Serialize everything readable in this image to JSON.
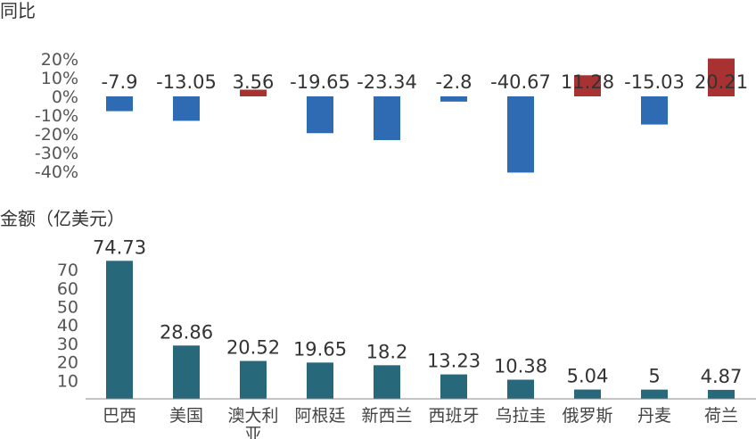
{
  "chart_data": [
    {
      "type": "bar",
      "title": "同比",
      "unit": "%",
      "ylim": [
        -40,
        20
      ],
      "yticks": [
        20,
        10,
        0,
        -10,
        -20,
        -30,
        -40
      ],
      "ytick_labels": [
        "20%",
        "10%",
        "0%",
        "-10%",
        "-20%",
        "-30%",
        "-40%"
      ],
      "categories": [
        "巴西",
        "美国",
        "澳大利亚",
        "阿根廷",
        "新西兰",
        "西班牙",
        "乌拉圭",
        "俄罗斯",
        "丹麦",
        "荷兰"
      ],
      "values": [
        -7.9,
        -13.05,
        3.56,
        -19.65,
        -23.34,
        -2.8,
        -40.67,
        11.28,
        -15.03,
        20.21
      ],
      "value_labels": [
        "-7.9",
        "-13.05",
        "3.56",
        "-19.65",
        "-23.34",
        "-2.8",
        "-40.67",
        "11.28",
        "-15.03",
        "20.21"
      ],
      "colors": {
        "positive": "#a83232",
        "negative": "#2f6bb3"
      }
    },
    {
      "type": "bar",
      "title": "金额（亿美元）",
      "ylim": [
        0,
        75
      ],
      "yticks": [
        10,
        20,
        30,
        40,
        50,
        60,
        70
      ],
      "ytick_labels": [
        "10",
        "20",
        "30",
        "40",
        "50",
        "60",
        "70"
      ],
      "categories": [
        "巴西",
        "美国",
        "澳大利亚",
        "阿根廷",
        "新西兰",
        "西班牙",
        "乌拉圭",
        "俄罗斯",
        "丹麦",
        "荷兰"
      ],
      "category_label_lines": [
        [
          "巴西"
        ],
        [
          "美国"
        ],
        [
          "澳大利",
          "亚"
        ],
        [
          "阿根廷"
        ],
        [
          "新西兰"
        ],
        [
          "西班牙"
        ],
        [
          "乌拉圭"
        ],
        [
          "俄罗斯"
        ],
        [
          "丹麦"
        ],
        [
          "荷兰"
        ]
      ],
      "values": [
        74.73,
        28.86,
        20.52,
        19.65,
        18.2,
        13.23,
        10.38,
        5.04,
        5,
        4.87
      ],
      "value_labels": [
        "74.73",
        "28.86",
        "20.52",
        "19.65",
        "18.2",
        "13.23",
        "10.38",
        "5.04",
        "5",
        "4.87"
      ],
      "colors": {
        "bar": "#27697a",
        "axis": "#888888"
      }
    }
  ]
}
